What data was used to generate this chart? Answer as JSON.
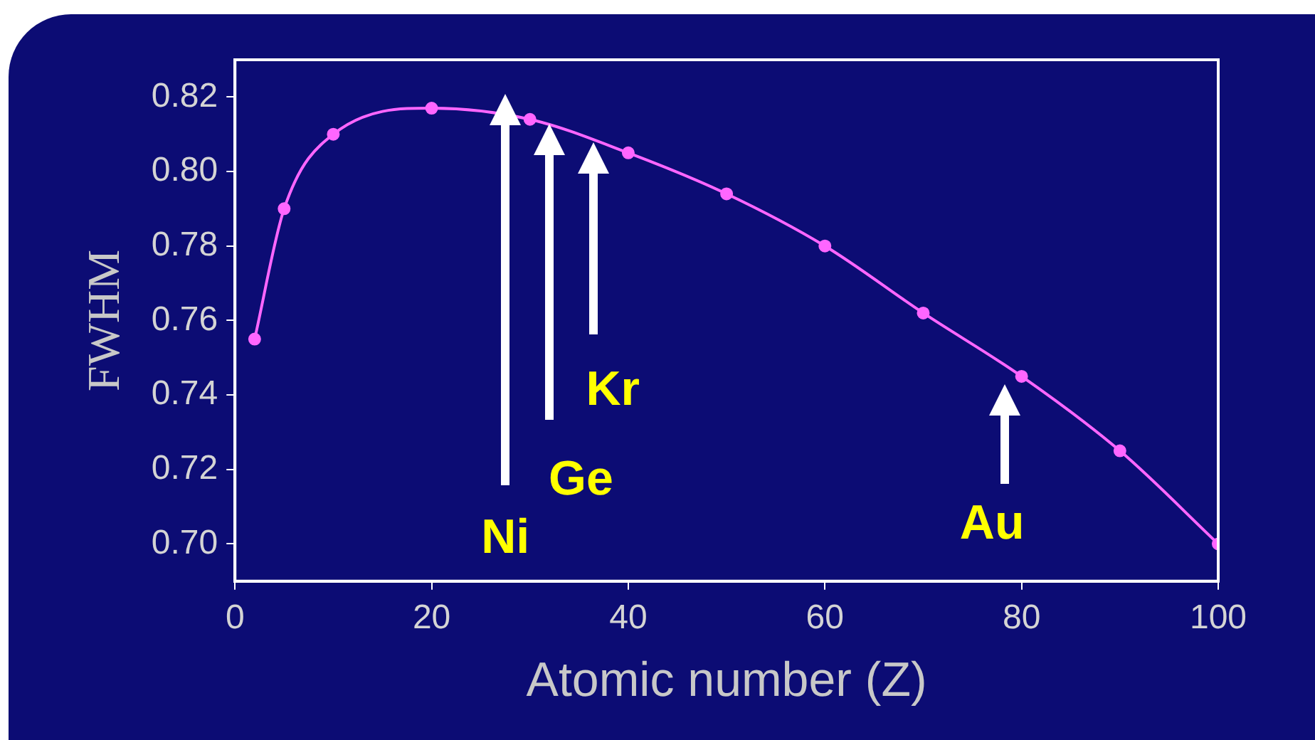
{
  "chart_data": {
    "type": "line",
    "xlabel": "Atomic number (Z)",
    "ylabel": "FWHM",
    "x": [
      2,
      5,
      10,
      20,
      30,
      40,
      50,
      60,
      70,
      80,
      90,
      100
    ],
    "series": [
      {
        "color": "#ff66ff",
        "values": [
          0.755,
          0.79,
          0.81,
          0.817,
          0.814,
          0.805,
          0.794,
          0.78,
          0.762,
          0.745,
          0.725,
          0.7
        ]
      }
    ],
    "xlim": [
      0,
      100
    ],
    "xticks": [
      0,
      20,
      40,
      60,
      80,
      100
    ],
    "ylim": [
      0.69,
      0.83
    ],
    "yticks": [
      {
        "value": 0.7,
        "label": "0.70"
      },
      {
        "value": 0.72,
        "label": "0.72"
      },
      {
        "value": 0.74,
        "label": "0.74"
      },
      {
        "value": 0.76,
        "label": "0.76"
      },
      {
        "value": 0.78,
        "label": "0.78"
      },
      {
        "value": 0.8,
        "label": "0.80"
      },
      {
        "value": 0.82,
        "label": "0.82"
      }
    ],
    "annotations": [
      "Ni",
      "Ge",
      "Kr",
      "Au"
    ],
    "grid": false,
    "legend": false,
    "marker": "circle",
    "line_style": "solid"
  }
}
